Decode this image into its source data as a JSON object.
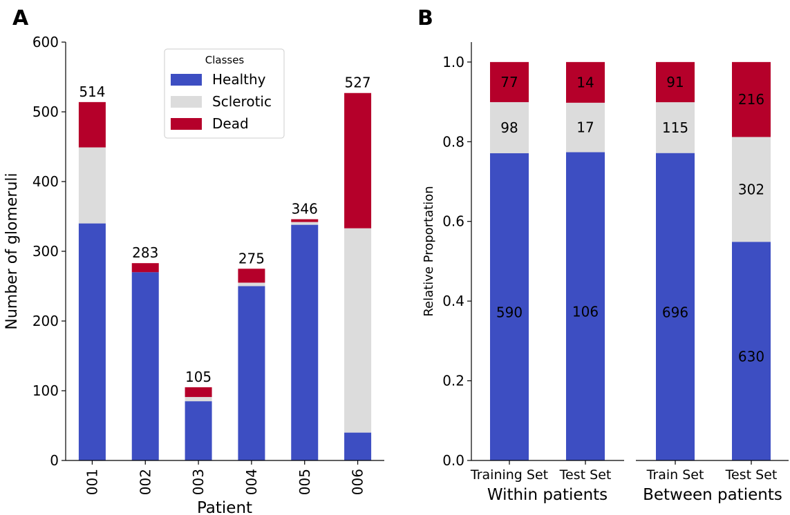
{
  "panel_labels": {
    "a": "A",
    "b": "B"
  },
  "chart_data": [
    {
      "type": "bar",
      "stacked": true,
      "categories": [
        "001",
        "002",
        "003",
        "004",
        "005",
        "006"
      ],
      "series": [
        {
          "name": "Healthy",
          "color": "#3d4ec2",
          "values": [
            340,
            270,
            85,
            250,
            338,
            40
          ]
        },
        {
          "name": "Sclerotic",
          "color": "#dcdcdc",
          "values": [
            109,
            0,
            6,
            5,
            4,
            293
          ]
        },
        {
          "name": "Dead",
          "color": "#b5002a",
          "values": [
            65,
            13,
            14,
            20,
            4,
            194
          ]
        }
      ],
      "totals": [
        "514",
        "283",
        "105",
        "275",
        "346",
        "527"
      ],
      "xlabel": "Patient",
      "ylabel": "Number of glomeruli",
      "ylim": [
        0,
        600
      ],
      "yticks": [
        "0",
        "100",
        "200",
        "300",
        "400",
        "500",
        "600"
      ],
      "legend": {
        "title": "Classes",
        "position": "top-center"
      },
      "grid": false
    },
    {
      "type": "bar",
      "stacked": true,
      "normalized": true,
      "categories": [
        "Training Set",
        "Test Set",
        "Train Set",
        "Test Set"
      ],
      "groups": [
        "Within patients",
        "Between patients"
      ],
      "series": [
        {
          "name": "Healthy",
          "color": "#3d4ec2",
          "values": [
            590,
            106,
            696,
            630
          ]
        },
        {
          "name": "Sclerotic",
          "color": "#dcdcdc",
          "values": [
            98,
            17,
            115,
            302
          ]
        },
        {
          "name": "Dead",
          "color": "#b5002a",
          "values": [
            77,
            14,
            91,
            216
          ]
        }
      ],
      "labels": {
        "healthy": [
          "590",
          "106",
          "696",
          "630"
        ],
        "sclerotic": [
          "98",
          "17",
          "115",
          "302"
        ],
        "dead": [
          "77",
          "14",
          "91",
          "216"
        ]
      },
      "ylabel": "Relative Proportation",
      "ylim": [
        0,
        1.05
      ],
      "yticks": [
        "0.0",
        "0.2",
        "0.4",
        "0.6",
        "0.8",
        "1.0"
      ],
      "grid": false
    }
  ]
}
